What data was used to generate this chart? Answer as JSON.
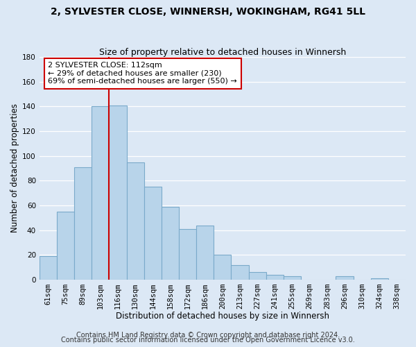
{
  "title": "2, SYLVESTER CLOSE, WINNERSH, WOKINGHAM, RG41 5LL",
  "subtitle": "Size of property relative to detached houses in Winnersh",
  "xlabel": "Distribution of detached houses by size in Winnersh",
  "ylabel": "Number of detached properties",
  "bar_labels": [
    "61sqm",
    "75sqm",
    "89sqm",
    "103sqm",
    "116sqm",
    "130sqm",
    "144sqm",
    "158sqm",
    "172sqm",
    "186sqm",
    "200sqm",
    "213sqm",
    "227sqm",
    "241sqm",
    "255sqm",
    "269sqm",
    "283sqm",
    "296sqm",
    "310sqm",
    "324sqm",
    "338sqm"
  ],
  "bar_values": [
    19,
    55,
    91,
    140,
    141,
    95,
    75,
    59,
    41,
    44,
    20,
    12,
    6,
    4,
    3,
    0,
    0,
    3,
    0,
    1,
    0
  ],
  "bar_color": "#b8d4ea",
  "bar_edge_color": "#7aaaca",
  "vline_x_index": 4,
  "vline_color": "#cc0000",
  "ylim": [
    0,
    180
  ],
  "yticks": [
    0,
    20,
    40,
    60,
    80,
    100,
    120,
    140,
    160,
    180
  ],
  "annotation_text": "2 SYLVESTER CLOSE: 112sqm\n← 29% of detached houses are smaller (230)\n69% of semi-detached houses are larger (550) →",
  "annotation_box_facecolor": "#ffffff",
  "annotation_box_edgecolor": "#cc0000",
  "footer_line1": "Contains HM Land Registry data © Crown copyright and database right 2024.",
  "footer_line2": "Contains public sector information licensed under the Open Government Licence v3.0.",
  "background_color": "#dce8f5",
  "plot_bg_color": "#dce8f5",
  "grid_color": "#ffffff",
  "title_fontsize": 10,
  "subtitle_fontsize": 9,
  "axis_label_fontsize": 8.5,
  "tick_fontsize": 7.5,
  "annotation_fontsize": 8,
  "footer_fontsize": 7
}
